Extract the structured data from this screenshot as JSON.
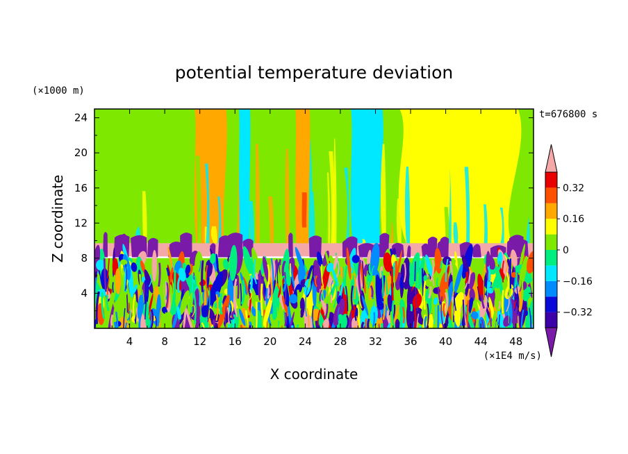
{
  "chart_data": {
    "type": "heatmap",
    "title": "potential temperature deviation",
    "time_label": "t=676800 s",
    "xlabel": "X coordinate",
    "ylabel": "Z coordinate",
    "x_unit": "(×1E4 m/s)",
    "y_unit": "(×1000 m)",
    "xlim": [
      0,
      50
    ],
    "ylim": [
      0,
      25
    ],
    "x_ticks": [
      "4",
      "8",
      "12",
      "16",
      "20",
      "24",
      "28",
      "32",
      "36",
      "40",
      "44",
      "48"
    ],
    "y_ticks": [
      "4",
      "8",
      "12",
      "16",
      "20",
      "24"
    ],
    "colorbar": {
      "levels": [
        -0.4,
        -0.32,
        -0.24,
        -0.16,
        -0.08,
        0,
        0.08,
        0.16,
        0.24,
        0.32,
        0.4
      ],
      "labels": [
        "0.32",
        "0.16",
        "0",
        "−0.16",
        "−0.32"
      ],
      "label_values": [
        0.32,
        0.16,
        0,
        -0.16,
        -0.32
      ],
      "colors": [
        "#7a1aa8",
        "#3d00a8",
        "#0a0ad8",
        "#008cff",
        "#00e8ff",
        "#00ee80",
        "#7ee800",
        "#ffff00",
        "#ffa800",
        "#ff5000",
        "#e80000",
        "#f5a8a8"
      ],
      "extend": "both"
    },
    "field_description": {
      "lower_layer": {
        "z_range": [
          0,
          8
        ],
        "pattern": "turbulent mix of all levels"
      },
      "inversion_band": {
        "z_range": [
          8.2,
          9.7
        ],
        "value": 0.44,
        "with_purple_plumes": true
      },
      "upper_layer": {
        "z_range": [
          9.7,
          25
        ],
        "background_value": 0.05,
        "columns": [
          {
            "x": [
              0.5,
              3
            ],
            "value": 0.02
          },
          {
            "x": [
              11.2,
              15.2
            ],
            "value": 0.18
          },
          {
            "x": [
              16.4,
              17.8
            ],
            "value": -0.1
          },
          {
            "x": [
              22.8,
              24.6
            ],
            "value": 0.18
          },
          {
            "x": [
              29,
              33
            ],
            "value": -0.12
          },
          {
            "x": [
              34,
              49
            ],
            "value": 0.1
          },
          {
            "x": [
              23.6,
              24.2
            ],
            "z_range": [
              11.5,
              15.5
            ],
            "value": 0.26
          }
        ]
      }
    }
  }
}
